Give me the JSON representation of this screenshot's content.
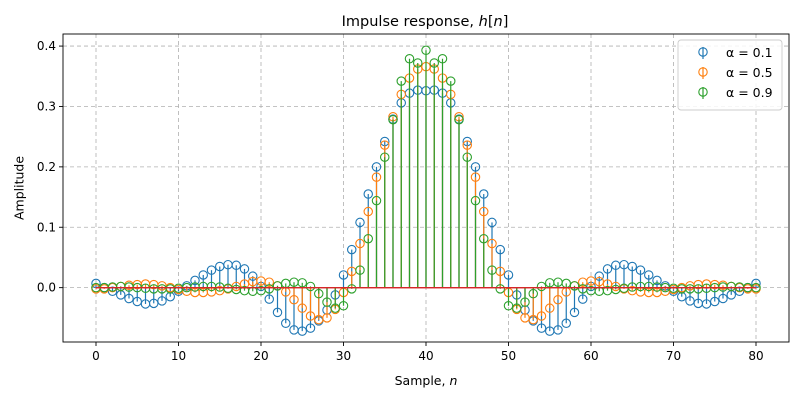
{
  "chart_data": {
    "type": "stem",
    "title": "Impulse response, h[n]",
    "title_parts": [
      "Impulse response, ",
      "h",
      "[",
      "n",
      "]"
    ],
    "xlabel": "Sample, n",
    "xlabel_parts": [
      "Sample, ",
      "n"
    ],
    "ylabel": "Amplitude",
    "xlim": [
      -4,
      84
    ],
    "ylim": [
      -0.09,
      0.42
    ],
    "xticks": [
      0,
      10,
      20,
      30,
      40,
      50,
      60,
      70,
      80
    ],
    "yticks": [
      -0.1,
      0.0,
      0.1,
      0.2,
      0.3,
      0.4
    ],
    "ytick_labels": [
      "0.0",
      "0.1",
      "0.2",
      "0.3",
      "0.4"
    ],
    "grid": true,
    "legend_position": "top-right",
    "n_start": 0,
    "n_end": 80,
    "series": [
      {
        "name": "α = 0.1",
        "color": "#1f77b4",
        "values": [
          0.007,
          0.0,
          -0.006,
          -0.012,
          -0.018,
          -0.023,
          -0.027,
          -0.026,
          -0.022,
          -0.015,
          -0.006,
          0.003,
          0.012,
          0.021,
          0.029,
          0.035,
          0.038,
          0.037,
          0.031,
          0.019,
          0.002,
          -0.019,
          -0.041,
          -0.059,
          -0.07,
          -0.072,
          -0.067,
          -0.055,
          -0.037,
          -0.012,
          0.021,
          0.063,
          0.108,
          0.155,
          0.2,
          0.242,
          0.279,
          0.306,
          0.322,
          0.327,
          0.326,
          0.327,
          0.322,
          0.306,
          0.279,
          0.242,
          0.2,
          0.155,
          0.108,
          0.063,
          0.021,
          -0.012,
          -0.037,
          -0.055,
          -0.067,
          -0.072,
          -0.07,
          -0.059,
          -0.041,
          -0.019,
          0.002,
          0.019,
          0.031,
          0.037,
          0.038,
          0.035,
          0.029,
          0.021,
          0.012,
          0.003,
          -0.006,
          -0.015,
          -0.022,
          -0.026,
          -0.027,
          -0.023,
          -0.018,
          -0.012,
          -0.006,
          0.0,
          0.007
        ]
      },
      {
        "name": "α = 0.5",
        "color": "#ff7f0e",
        "values": [
          -0.002,
          -0.002,
          0.0,
          0.002,
          0.004,
          0.005,
          0.006,
          0.005,
          0.003,
          0.0,
          -0.003,
          -0.006,
          -0.008,
          -0.008,
          -0.007,
          -0.005,
          -0.002,
          0.002,
          0.006,
          0.01,
          0.011,
          0.009,
          0.003,
          -0.007,
          -0.02,
          -0.034,
          -0.047,
          -0.053,
          -0.05,
          -0.036,
          -0.008,
          0.027,
          0.073,
          0.126,
          0.183,
          0.236,
          0.283,
          0.32,
          0.347,
          0.362,
          0.366,
          0.362,
          0.347,
          0.32,
          0.283,
          0.236,
          0.183,
          0.126,
          0.073,
          0.027,
          -0.008,
          -0.036,
          -0.05,
          -0.053,
          -0.047,
          -0.034,
          -0.02,
          -0.007,
          0.003,
          0.009,
          0.011,
          0.01,
          0.006,
          0.002,
          -0.002,
          -0.005,
          -0.007,
          -0.008,
          -0.008,
          -0.006,
          -0.003,
          0.0,
          0.003,
          0.005,
          0.006,
          0.005,
          0.004,
          0.002,
          0.0,
          -0.002,
          -0.002
        ]
      },
      {
        "name": "α = 0.9",
        "color": "#2ca02c",
        "values": [
          0.0,
          0.0,
          0.001,
          0.002,
          0.001,
          0.0,
          -0.001,
          -0.002,
          -0.002,
          -0.002,
          -0.001,
          0.0,
          0.001,
          0.002,
          0.002,
          0.001,
          -0.001,
          -0.003,
          -0.005,
          -0.006,
          -0.005,
          -0.002,
          0.003,
          0.007,
          0.009,
          0.008,
          0.002,
          -0.01,
          -0.024,
          -0.034,
          -0.03,
          -0.002,
          0.029,
          0.081,
          0.144,
          0.216,
          0.278,
          0.342,
          0.379,
          0.372,
          0.393,
          0.372,
          0.379,
          0.342,
          0.278,
          0.216,
          0.144,
          0.081,
          0.029,
          -0.002,
          -0.03,
          -0.034,
          -0.024,
          -0.01,
          0.002,
          0.008,
          0.009,
          0.007,
          0.003,
          -0.002,
          -0.005,
          -0.006,
          -0.005,
          -0.003,
          -0.001,
          0.001,
          0.002,
          0.002,
          0.001,
          0.0,
          -0.001,
          -0.002,
          -0.002,
          -0.002,
          -0.001,
          0.0,
          0.001,
          0.002,
          0.001,
          0.0,
          0.0
        ]
      }
    ]
  }
}
